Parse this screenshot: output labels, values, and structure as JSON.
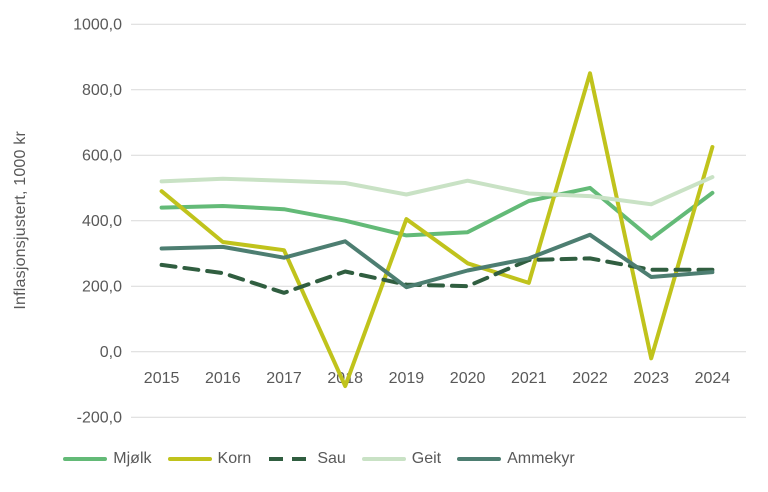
{
  "chart_data": {
    "type": "line",
    "title": "",
    "xlabel": "",
    "ylabel": "Inflasjonsjustert, 1000 kr",
    "categories": [
      "2015",
      "2016",
      "2017",
      "2018",
      "2019",
      "2020",
      "2021",
      "2022",
      "2023",
      "2024"
    ],
    "ylim": [
      -200,
      1000
    ],
    "ytick_values": [
      1000,
      800,
      600,
      400,
      200,
      0,
      -200
    ],
    "ytick_labels": [
      "1000,0",
      "800,0",
      "600,0",
      "400,0",
      "200,0",
      "0,0",
      "-200,0"
    ],
    "grid": true,
    "legend_position": "bottom",
    "series": [
      {
        "name": "Mjølk",
        "color": "#63BA77",
        "style": "solid",
        "values": [
          440,
          445,
          435,
          400,
          355,
          365,
          460,
          500,
          345,
          485
        ]
      },
      {
        "name": "Korn",
        "color": "#C0C31C",
        "style": "solid",
        "values": [
          490,
          335,
          310,
          -105,
          405,
          270,
          210,
          850,
          -20,
          625
        ]
      },
      {
        "name": "Sau",
        "color": "#305E40",
        "style": "dashed",
        "values": [
          265,
          240,
          180,
          245,
          205,
          200,
          280,
          285,
          250,
          250
        ]
      },
      {
        "name": "Geit",
        "color": "#C9E2C5",
        "style": "solid",
        "values": [
          520,
          528,
          522,
          515,
          480,
          522,
          483,
          475,
          450,
          533
        ]
      },
      {
        "name": "Ammekyr",
        "color": "#4D7E71",
        "style": "solid",
        "values": [
          315,
          320,
          287,
          337,
          197,
          248,
          285,
          357,
          228,
          243
        ]
      }
    ]
  },
  "colors": {
    "background": "#FFFFFF",
    "gridline": "#D9D9D9",
    "axis_text": "#595959"
  }
}
